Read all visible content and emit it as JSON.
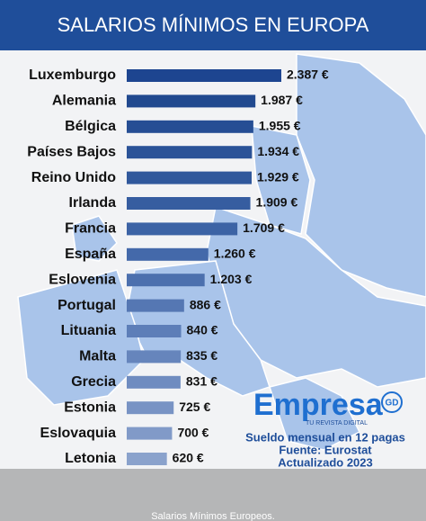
{
  "chart_data": {
    "type": "hbar",
    "title": "SALARIOS MÍNIMOS EN EUROPA",
    "categories": [
      "Luxemburgo",
      "Alemania",
      "Bélgica",
      "Países Bajos",
      "Reino Unido",
      "Irlanda",
      "Francia",
      "España",
      "Eslovenia",
      "Portugal",
      "Lituania",
      "Malta",
      "Grecia",
      "Estonia",
      "Eslovaquia",
      "Letonia"
    ],
    "values": [
      2387,
      1987,
      1955,
      1934,
      1929,
      1909,
      1709,
      1260,
      1203,
      886,
      840,
      835,
      831,
      725,
      700,
      620
    ],
    "value_labels": [
      "2.387 €",
      "1.987 €",
      "1.955 €",
      "1.934 €",
      "1.929 €",
      "1.909 €",
      "1.709 €",
      "1.260 €",
      "1.203 €",
      "886 €",
      "840 €",
      "835 €",
      "831 €",
      "725 €",
      "700 €",
      "620 €"
    ],
    "colors": [
      "#1d4590",
      "#21498f",
      "#264e94",
      "#2b5398",
      "#30589c",
      "#365da0",
      "#3c63a5",
      "#4469aa",
      "#4c70ae",
      "#5577b3",
      "#5d7eb8",
      "#6685bc",
      "#6f8cc0",
      "#7893c4",
      "#819ac8",
      "#8aa2cc"
    ],
    "logo": {
      "name": "Empresa",
      "badge": "GD",
      "tagline": "TU REVISTA DIGITAL"
    },
    "notes": [
      "Sueldo mensual en 12 pagas",
      "Fuente: Eurostat",
      "Actualizado 2023"
    ],
    "caption": "Salarios Mínimos Europeos."
  }
}
